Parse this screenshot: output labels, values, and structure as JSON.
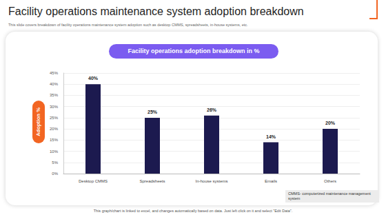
{
  "chart_data": {
    "type": "bar",
    "title": "Facility operations maintenance system adoption breakdown",
    "subtitle": "This slide covers breakdown of facility operations maintenance system adoption such as desktop CMMS, spreadsheets, in-house systems, etc.",
    "annotations": [
      "Facility operations adoption breakdown in %",
      "CMMS- computerized maintenance management system",
      "This graph/chart is linked to excel, and changes automatically based on data. Just left click on it and select \"Edit Data\"."
    ],
    "ylabel": "Adoption %",
    "categories": [
      "Desktop CMMS",
      "Spreadsheets",
      "In-house systems",
      "Emails",
      "Others"
    ],
    "values": [
      40,
      25,
      26,
      14,
      20
    ],
    "value_labels": [
      "40%",
      "25%",
      "26%",
      "14%",
      "20%"
    ],
    "data_labels": true,
    "color": "#1c1a4f",
    "ylim": [
      0,
      45
    ],
    "yticks": [
      {
        "value": 0,
        "label": "0%"
      },
      {
        "value": 5,
        "label": "5%"
      },
      {
        "value": 10,
        "label": "10%"
      },
      {
        "value": 15,
        "label": "15%"
      },
      {
        "value": 20,
        "label": "20%"
      },
      {
        "value": 25,
        "label": "25%"
      },
      {
        "value": 30,
        "label": "30%"
      },
      {
        "value": 35,
        "label": "35%"
      },
      {
        "value": 40,
        "label": "40%"
      },
      {
        "value": 45,
        "label": "45%"
      }
    ],
    "grid": true
  }
}
